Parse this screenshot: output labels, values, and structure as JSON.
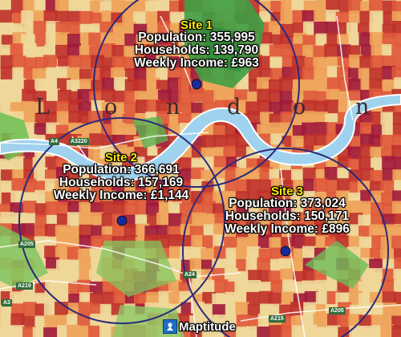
{
  "place_name_letters": [
    "L",
    "o",
    "n",
    "d",
    "o",
    "n"
  ],
  "sites": [
    {
      "title": "Site 1",
      "population": "Population: 355,995",
      "households": "Households: 139,790",
      "income": "Weekly Income: £963"
    },
    {
      "title": "Site 2",
      "population": "Population: 366,691",
      "households": "Households: 157,169",
      "income": "Weekly Income: £1,144"
    },
    {
      "title": "Site 3",
      "population": "Population: 373,024",
      "households": "Households: 150,171",
      "income": "Weekly Income: £896"
    }
  ],
  "roads": [
    "A4",
    "A3220",
    "A205",
    "A219",
    "A3",
    "A24",
    "A215",
    "A205"
  ],
  "brand": {
    "name": "Maptitude",
    "icon": "maptitude-logo-icon"
  },
  "colors": {
    "ring": "#2a2a7a",
    "marker": "#1a2a9a",
    "river": "#9fd2ee",
    "site_title": "#ffe900",
    "high": "#c0312a",
    "mid_high": "#e0593a",
    "mid": "#f0a35a",
    "low": "#efd89a",
    "park": "#4fb04a",
    "deprived": "#a11a3a"
  }
}
